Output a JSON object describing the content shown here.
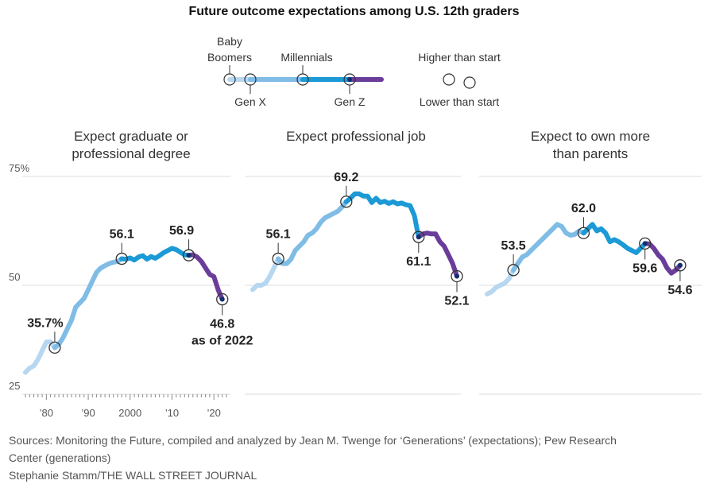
{
  "title": "Future outcome expectations among U.S. 12th graders",
  "legend": {
    "generations": [
      {
        "name": "Baby Boomers",
        "color": "#b7d7f0"
      },
      {
        "name": "Gen X",
        "color": "#7fbce6"
      },
      {
        "name": "Millennials",
        "color": "#1b9ad6"
      },
      {
        "name": "Gen Z",
        "color": "#6a3d9a"
      }
    ],
    "higher": "Higher than start",
    "lower": "Lower than start"
  },
  "source": {
    "line1": "Sources: Monitoring the Future, compiled and analyzed by Jean M. Twenge for  ‘Generations’ (expectations); Pew Research",
    "line2": "Center (generations)",
    "line3": "Stephanie Stamm/THE WALL STREET JOURNAL"
  },
  "chart_data": [
    {
      "type": "line",
      "title": "Expect graduate or professional degree",
      "ylim": [
        25,
        75
      ],
      "yticks": [
        {
          "v": 25,
          "label": "25"
        },
        {
          "v": 50,
          "label": "50"
        },
        {
          "v": 75,
          "label": "75%"
        }
      ],
      "xlim": [
        1975,
        2023
      ],
      "xticks": [
        {
          "v": 1980,
          "label": "’80"
        },
        {
          "v": 1990,
          "label": "’90"
        },
        {
          "v": 2000,
          "label": "2000"
        },
        {
          "v": 2010,
          "label": "’10"
        },
        {
          "v": 2020,
          "label": "’20"
        }
      ],
      "series": [
        {
          "color": "#b7d7f0",
          "points": [
            [
              1975,
              30
            ],
            [
              1976,
              31
            ],
            [
              1977,
              31.5
            ],
            [
              1978,
              33
            ],
            [
              1979,
              35
            ],
            [
              1980,
              37
            ],
            [
              1981,
              37
            ],
            [
              1982,
              35.7
            ]
          ]
        },
        {
          "color": "#7fbce6",
          "points": [
            [
              1982,
              35.7
            ],
            [
              1983,
              36.5
            ],
            [
              1984,
              38
            ],
            [
              1985,
              40
            ],
            [
              1986,
              42
            ],
            [
              1987,
              45
            ],
            [
              1988,
              46
            ],
            [
              1989,
              47
            ],
            [
              1990,
              49
            ],
            [
              1991,
              51
            ],
            [
              1992,
              53
            ],
            [
              1993,
              54
            ],
            [
              1994,
              54.5
            ],
            [
              1995,
              55
            ],
            [
              1996,
              55.3
            ],
            [
              1997,
              55.5
            ],
            [
              1998,
              56.1
            ]
          ]
        },
        {
          "color": "#1b9ad6",
          "points": [
            [
              1998,
              56.1
            ],
            [
              1999,
              56
            ],
            [
              2000,
              56.3
            ],
            [
              2001,
              55.8
            ],
            [
              2002,
              56.5
            ],
            [
              2003,
              56.8
            ],
            [
              2004,
              56
            ],
            [
              2005,
              56.6
            ],
            [
              2006,
              56.2
            ],
            [
              2007,
              56.8
            ],
            [
              2008,
              57.5
            ],
            [
              2009,
              58
            ],
            [
              2010,
              58.5
            ],
            [
              2011,
              58.2
            ],
            [
              2012,
              57.6
            ],
            [
              2013,
              57
            ],
            [
              2014,
              56.9
            ]
          ]
        },
        {
          "color": "#6a3d9a",
          "points": [
            [
              2014,
              56.9
            ],
            [
              2015,
              57
            ],
            [
              2016,
              56.5
            ],
            [
              2017,
              55.5
            ],
            [
              2018,
              54
            ],
            [
              2019,
              52.5
            ],
            [
              2020,
              52
            ],
            [
              2021,
              49
            ],
            [
              2022,
              46.8
            ]
          ]
        }
      ],
      "markers": [
        {
          "x": 1982,
          "y": 35.7,
          "label": "35.7%",
          "color": "#7fbce6"
        },
        {
          "x": 1998,
          "y": 56.1,
          "label": "56.1",
          "color": "#1b9ad6"
        },
        {
          "x": 2014,
          "y": 56.9,
          "label": "56.9",
          "color": "#6a3d9a"
        },
        {
          "x": 2022,
          "y": 46.8,
          "label": "46.8",
          "sublabel": "as of 2022",
          "color": "#6a3d9a"
        }
      ]
    },
    {
      "type": "line",
      "title": "Expect professional job",
      "ylim": [
        25,
        75
      ],
      "xlim": [
        1975,
        2023
      ],
      "series": [
        {
          "color": "#b7d7f0",
          "points": [
            [
              1975,
              49
            ],
            [
              1976,
              50
            ],
            [
              1977,
              50
            ],
            [
              1978,
              50.5
            ],
            [
              1979,
              52
            ],
            [
              1980,
              54
            ],
            [
              1981,
              56.1
            ]
          ]
        },
        {
          "color": "#7fbce6",
          "points": [
            [
              1981,
              56.1
            ],
            [
              1982,
              55
            ],
            [
              1983,
              55
            ],
            [
              1984,
              56
            ],
            [
              1985,
              58
            ],
            [
              1986,
              59
            ],
            [
              1987,
              60
            ],
            [
              1988,
              61.5
            ],
            [
              1989,
              62
            ],
            [
              1990,
              63
            ],
            [
              1991,
              64.5
            ],
            [
              1992,
              65.5
            ],
            [
              1993,
              66
            ],
            [
              1994,
              66.5
            ],
            [
              1995,
              67
            ],
            [
              1996,
              68
            ],
            [
              1997,
              69.2
            ]
          ]
        },
        {
          "color": "#1b9ad6",
          "points": [
            [
              1997,
              69.2
            ],
            [
              1998,
              70
            ],
            [
              1999,
              71
            ],
            [
              2000,
              71
            ],
            [
              2001,
              70.5
            ],
            [
              2002,
              70.5
            ],
            [
              2003,
              69
            ],
            [
              2004,
              70
            ],
            [
              2005,
              69
            ],
            [
              2006,
              69.3
            ],
            [
              2007,
              68.8
            ],
            [
              2008,
              69.2
            ],
            [
              2009,
              68.7
            ],
            [
              2010,
              68.9
            ],
            [
              2011,
              68.5
            ],
            [
              2012,
              68.3
            ],
            [
              2013,
              66
            ],
            [
              2014,
              61.1
            ]
          ]
        },
        {
          "color": "#6a3d9a",
          "points": [
            [
              2014,
              61.1
            ],
            [
              2015,
              61.8
            ],
            [
              2016,
              62
            ],
            [
              2017,
              61.8
            ],
            [
              2018,
              61.8
            ],
            [
              2019,
              60
            ],
            [
              2020,
              59
            ],
            [
              2021,
              57
            ],
            [
              2022,
              55
            ],
            [
              2023,
              52.1
            ]
          ]
        }
      ],
      "markers": [
        {
          "x": 1981,
          "y": 56.1,
          "label": "56.1",
          "color": "#7fbce6"
        },
        {
          "x": 1997,
          "y": 69.2,
          "label": "69.2",
          "color": "#1b9ad6"
        },
        {
          "x": 2014,
          "y": 61.1,
          "label": "61.1",
          "color": "#6a3d9a"
        },
        {
          "x": 2023,
          "y": 52.1,
          "label": "52.1",
          "color": "#6a3d9a"
        }
      ]
    },
    {
      "type": "line",
      "title": "Expect to own more than parents",
      "ylim": [
        25,
        75
      ],
      "xlim": [
        1975,
        2023
      ],
      "series": [
        {
          "color": "#b7d7f0",
          "points": [
            [
              1975,
              48
            ],
            [
              1976,
              48.5
            ],
            [
              1977,
              49.5
            ],
            [
              1978,
              50
            ],
            [
              1979,
              50.5
            ],
            [
              1980,
              51.5
            ],
            [
              1981,
              53.5
            ]
          ]
        },
        {
          "color": "#7fbce6",
          "points": [
            [
              1981,
              53.5
            ],
            [
              1982,
              55
            ],
            [
              1983,
              56.5
            ],
            [
              1984,
              57
            ],
            [
              1985,
              58
            ],
            [
              1986,
              59
            ],
            [
              1987,
              60
            ],
            [
              1988,
              61
            ],
            [
              1989,
              62
            ],
            [
              1990,
              63
            ],
            [
              1991,
              64
            ],
            [
              1992,
              63.5
            ],
            [
              1993,
              62
            ],
            [
              1994,
              61.5
            ],
            [
              1995,
              61.7
            ],
            [
              1996,
              62.5
            ],
            [
              1997,
              62
            ]
          ]
        },
        {
          "color": "#1b9ad6",
          "points": [
            [
              1997,
              62
            ],
            [
              1998,
              63
            ],
            [
              1999,
              64
            ],
            [
              2000,
              62.5
            ],
            [
              2001,
              63
            ],
            [
              2002,
              62
            ],
            [
              2003,
              60
            ],
            [
              2004,
              60.5
            ],
            [
              2005,
              60
            ],
            [
              2006,
              59.3
            ],
            [
              2007,
              58.5
            ],
            [
              2008,
              58
            ],
            [
              2009,
              57.5
            ],
            [
              2010,
              58.5
            ],
            [
              2011,
              59.6
            ]
          ]
        },
        {
          "color": "#6a3d9a",
          "points": [
            [
              2011,
              59.6
            ],
            [
              2012,
              59.5
            ],
            [
              2013,
              58.5
            ],
            [
              2014,
              57
            ],
            [
              2015,
              56
            ],
            [
              2016,
              54
            ],
            [
              2017,
              52.8
            ],
            [
              2018,
              53.5
            ],
            [
              2019,
              54.6
            ]
          ]
        }
      ],
      "markers": [
        {
          "x": 1981,
          "y": 53.5,
          "label": "53.5",
          "color": "#7fbce6"
        },
        {
          "x": 1997,
          "y": 62.0,
          "label": "62.0",
          "color": "#1b9ad6"
        },
        {
          "x": 2011,
          "y": 59.6,
          "label": "59.6",
          "color": "#6a3d9a"
        },
        {
          "x": 2019,
          "y": 54.6,
          "label": "54.6",
          "color": "#6a3d9a"
        }
      ]
    }
  ]
}
